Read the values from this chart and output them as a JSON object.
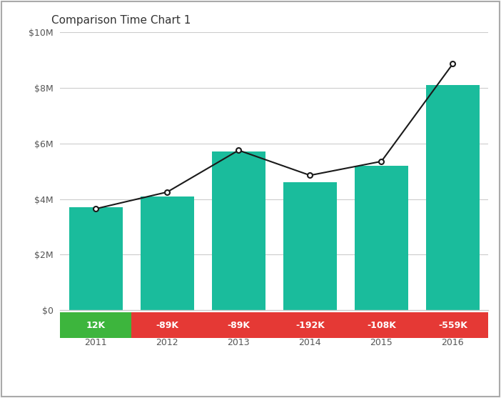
{
  "title": "Comparison Time Chart 1",
  "years": [
    2011,
    2012,
    2013,
    2014,
    2015,
    2016
  ],
  "bar_values": [
    3700000,
    4100000,
    5700000,
    4600000,
    5200000,
    8100000
  ],
  "line_values": [
    3650000,
    4250000,
    5750000,
    4850000,
    5350000,
    8850000
  ],
  "bar_color": "#1abc9c",
  "line_color": "#1a1a1a",
  "marker_color": "#ffffff",
  "marker_edge_color": "#1a1a1a",
  "background_color": "#ffffff",
  "border_color": "#cccccc",
  "grid_color": "#cccccc",
  "label_texts": [
    "12K",
    "-89K",
    "-89K",
    "-192K",
    "-108K",
    "-559K"
  ],
  "label_colors": [
    "#3db53d",
    "#e53935",
    "#e53935",
    "#e53935",
    "#e53935",
    "#e53935"
  ],
  "label_text_color": "#ffffff",
  "ylim": [
    0,
    10000000
  ],
  "ytick_labels": [
    "$0",
    "$2M",
    "$4M",
    "$6M",
    "$8M",
    "$10M"
  ],
  "ytick_values": [
    0,
    2000000,
    4000000,
    6000000,
    8000000,
    10000000
  ],
  "title_fontsize": 11,
  "axis_label_fontsize": 9,
  "bar_width": 0.75
}
